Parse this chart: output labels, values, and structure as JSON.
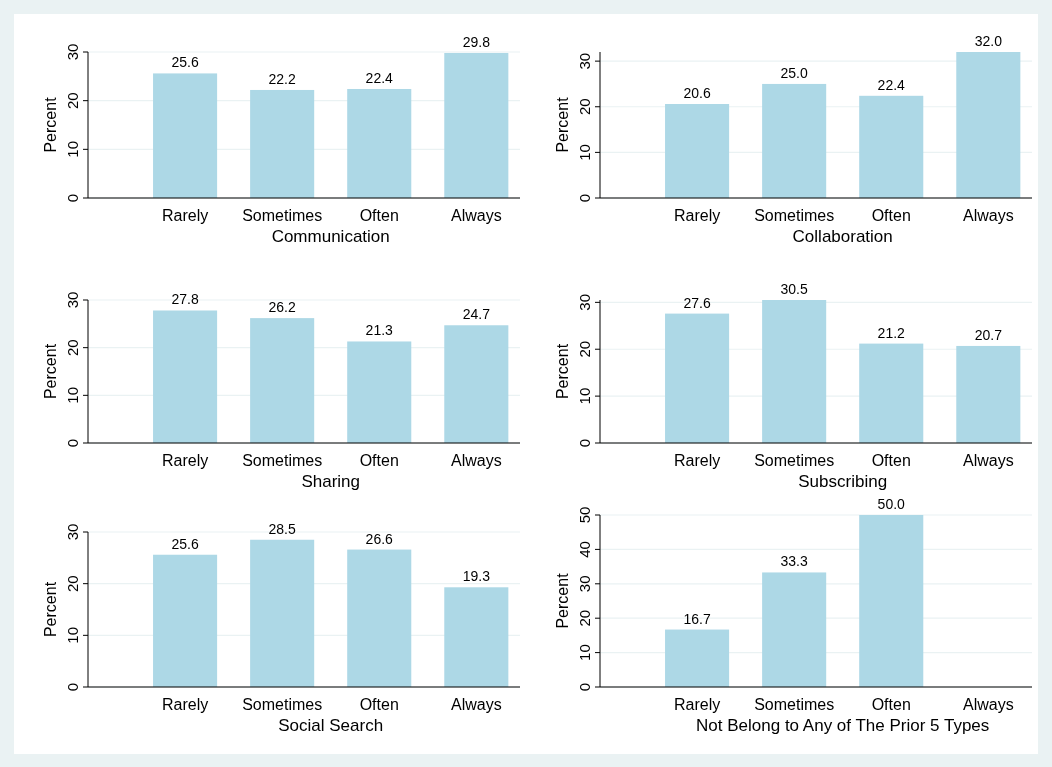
{
  "chart_data": [
    {
      "type": "bar",
      "xlabel": "Communication",
      "ylabel": "Percent",
      "categories": [
        "Rarely",
        "Sometimes",
        "Often",
        "Always"
      ],
      "values": [
        25.6,
        22.2,
        22.4,
        29.8
      ],
      "value_labels": [
        "25.6",
        "22.2",
        "22.4",
        "29.8"
      ],
      "color": "#add8e6",
      "ylim": [
        0,
        30
      ],
      "yticks": [
        0,
        10,
        20,
        30
      ],
      "grid": "y"
    },
    {
      "type": "bar",
      "xlabel": "Collaboration",
      "ylabel": "Percent",
      "categories": [
        "Rarely",
        "Sometimes",
        "Often",
        "Always"
      ],
      "values": [
        20.6,
        25.0,
        22.4,
        32.0
      ],
      "value_labels": [
        "20.6",
        "25.0",
        "22.4",
        "32.0"
      ],
      "color": "#add8e6",
      "ylim": [
        0,
        32
      ],
      "yticks": [
        0,
        10,
        20,
        30
      ],
      "grid": "y"
    },
    {
      "type": "bar",
      "xlabel": "Sharing",
      "ylabel": "Percent",
      "categories": [
        "Rarely",
        "Sometimes",
        "Often",
        "Always"
      ],
      "values": [
        27.8,
        26.2,
        21.3,
        24.7
      ],
      "value_labels": [
        "27.8",
        "26.2",
        "21.3",
        "24.7"
      ],
      "color": "#add8e6",
      "ylim": [
        0,
        30
      ],
      "yticks": [
        0,
        10,
        20,
        30
      ],
      "grid": "y"
    },
    {
      "type": "bar",
      "xlabel": "Subscribing",
      "ylabel": "Percent",
      "categories": [
        "Rarely",
        "Sometimes",
        "Often",
        "Always"
      ],
      "values": [
        27.6,
        30.5,
        21.2,
        20.7
      ],
      "value_labels": [
        "27.6",
        "30.5",
        "21.2",
        "20.7"
      ],
      "color": "#add8e6",
      "ylim": [
        0,
        30.5
      ],
      "yticks": [
        0,
        10,
        20,
        30
      ],
      "grid": "y"
    },
    {
      "type": "bar",
      "xlabel": "Social Search",
      "ylabel": "Percent",
      "categories": [
        "Rarely",
        "Sometimes",
        "Often",
        "Always"
      ],
      "values": [
        25.6,
        28.5,
        26.6,
        19.3
      ],
      "value_labels": [
        "25.6",
        "28.5",
        "26.6",
        "19.3"
      ],
      "color": "#add8e6",
      "ylim": [
        0,
        30
      ],
      "yticks": [
        0,
        10,
        20,
        30
      ],
      "grid": "y"
    },
    {
      "type": "bar",
      "xlabel": "Not Belong to Any of The Prior 5 Types",
      "ylabel": "Percent",
      "categories": [
        "Rarely",
        "Sometimes",
        "Often",
        "Always"
      ],
      "values": [
        16.7,
        33.3,
        50.0,
        null
      ],
      "value_labels": [
        "16.7",
        "33.3",
        "50.0",
        null
      ],
      "color": "#add8e6",
      "ylim": [
        0,
        50
      ],
      "yticks": [
        0,
        10,
        20,
        30,
        40,
        50
      ],
      "grid": "y"
    }
  ]
}
